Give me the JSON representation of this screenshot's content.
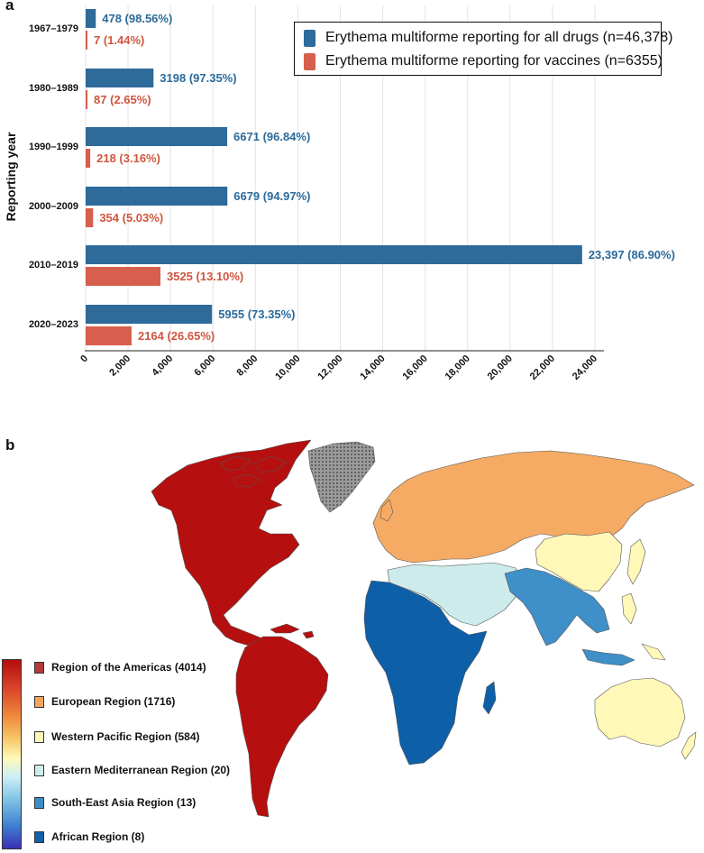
{
  "panels": {
    "a_letter": "a",
    "b_letter": "b"
  },
  "chart_data": {
    "type": "bar",
    "orientation": "horizontal",
    "ylabel": "Reporting year",
    "categories": [
      "1967–1979",
      "1980–1989",
      "1990–1999",
      "2000–2009",
      "2010–2019",
      "2020–2023"
    ],
    "series": [
      {
        "name": "Erythema multiforme reporting for all drugs (n=46,378)",
        "color": "#2e6a9a",
        "values": [
          478,
          3198,
          6671,
          6679,
          23397,
          5955
        ],
        "labels": [
          "478 (98.56%)",
          "3198 (97.35%)",
          "6671 (96.84%)",
          "6679 (94.97%)",
          "23,397 (86.90%)",
          "5955 (73.35%)"
        ]
      },
      {
        "name": "Erythema multiforme reporting for vaccines (n=6355)",
        "color": "#d65f4d",
        "values": [
          7,
          87,
          218,
          354,
          3525,
          2164
        ],
        "labels": [
          "7 (1.44%)",
          "87 (2.65%)",
          "218 (3.16%)",
          "354 (5.03%)",
          "3525 (13.10%)",
          "2164 (26.65%)"
        ]
      }
    ],
    "xlim": [
      0,
      24000
    ],
    "xticks": [
      "0",
      "2,000",
      "4,000",
      "6,000",
      "8,000",
      "10,000",
      "12,000",
      "14,000",
      "16,000",
      "18,000",
      "20,000",
      "22,000",
      "24,000"
    ],
    "grid": true,
    "legend_position": "top-right"
  },
  "map": {
    "colors": {
      "americas": "#b50f0f",
      "europe": "#f5ab64",
      "western_pacific": "#fff8b8",
      "eastern_mediterranean": "#cdebea",
      "south_east_asia": "#3f8fc8",
      "africa": "#0d5fa8",
      "no_data": "#8f8f8f"
    },
    "legend": [
      {
        "label": "Region of the Americas (4014)",
        "color": "#b23a3a"
      },
      {
        "label": "European Region (1716)",
        "color": "#f2a55e"
      },
      {
        "label": "Western Pacific Region (584)",
        "color": "#fff7b8"
      },
      {
        "label": "Eastern Mediterranean  Region (20)",
        "color": "#cfecec"
      },
      {
        "label": "South-East Asia Region (13)",
        "color": "#3d8ec6"
      },
      {
        "label": "African Region (8)",
        "color": "#1261a8"
      }
    ]
  }
}
